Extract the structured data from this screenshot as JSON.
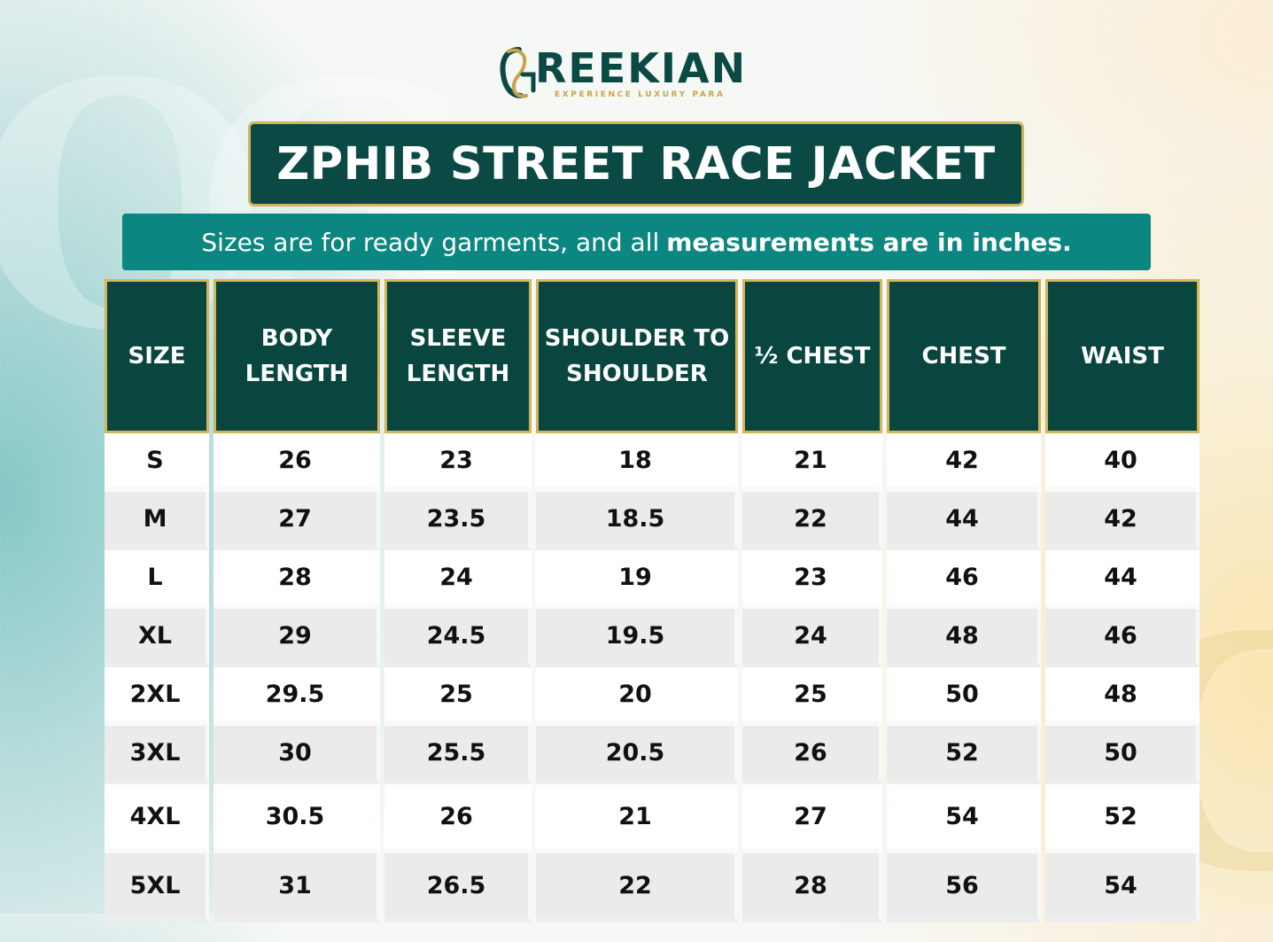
{
  "brand": {
    "name": "REEKIAN",
    "tagline": "EXPERIENCE LUXURY PARA",
    "colors": {
      "dark_green": "#0b4a44",
      "teal": "#0b8680",
      "gold": "#d4b45a"
    }
  },
  "title": "ZPHIB STREET RACE JACKET",
  "subtitle": {
    "regular": "Sizes are for ready garments, and all",
    "bold": "measurements are in inches."
  },
  "table": {
    "headers": [
      [
        "SIZE"
      ],
      [
        "BODY",
        "LENGTH"
      ],
      [
        "SLEEVE",
        "LENGTH"
      ],
      [
        "SHOULDER TO",
        "SHOULDER"
      ],
      [
        "½ CHEST"
      ],
      [
        "CHEST"
      ],
      [
        "WAIST"
      ]
    ],
    "rows": [
      [
        "S",
        "26",
        "23",
        "18",
        "21",
        "42",
        "40"
      ],
      [
        "M",
        "27",
        "23.5",
        "18.5",
        "22",
        "44",
        "42"
      ],
      [
        "L",
        "28",
        "24",
        "19",
        "23",
        "46",
        "44"
      ],
      [
        "XL",
        "29",
        "24.5",
        "19.5",
        "24",
        "48",
        "46"
      ],
      [
        "2XL",
        "29.5",
        "25",
        "20",
        "25",
        "50",
        "48"
      ],
      [
        "3XL",
        "30",
        "25.5",
        "20.5",
        "26",
        "52",
        "50"
      ],
      [
        "4XL",
        "30.5",
        "26",
        "21",
        "27",
        "54",
        "52"
      ],
      [
        "5XL",
        "31",
        "26.5",
        "22",
        "28",
        "56",
        "54"
      ]
    ]
  }
}
